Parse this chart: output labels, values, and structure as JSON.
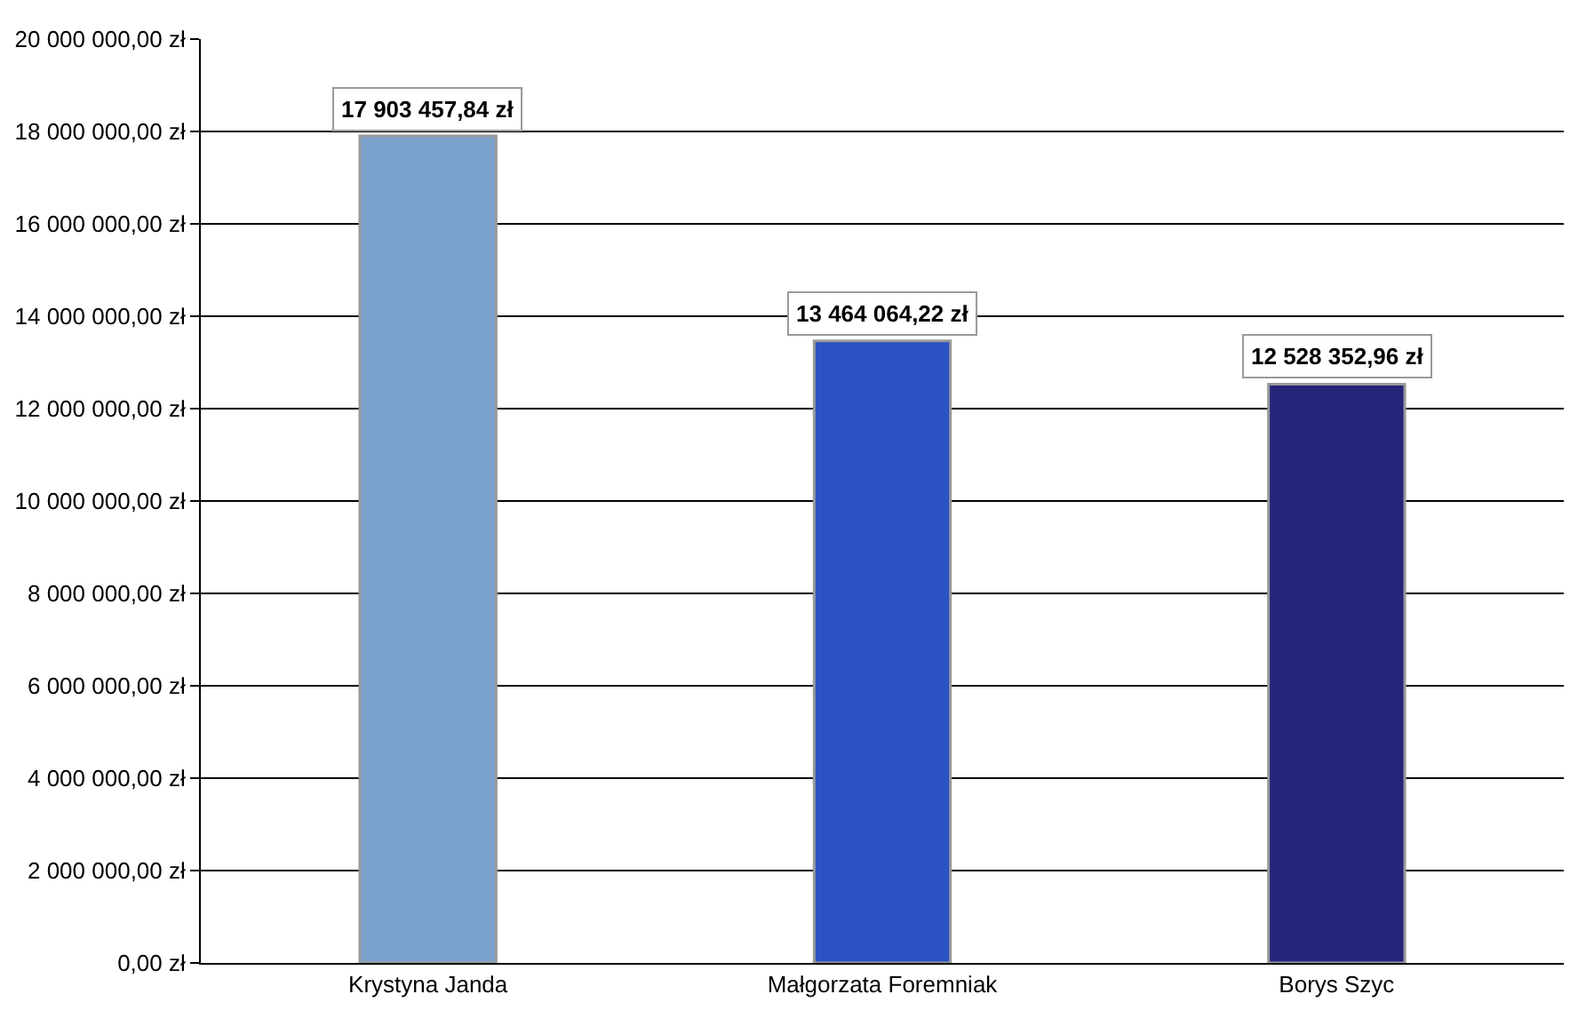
{
  "chart_data": {
    "type": "bar",
    "categories": [
      "Krystyna Janda",
      "Małgorzata Foremniak",
      "Borys Szyc"
    ],
    "values": [
      17903457.84,
      13464064.22,
      12528352.96
    ],
    "colors": [
      "#7aa2cc",
      "#2b52c4",
      "#25257a"
    ],
    "value_labels": [
      "17 903 457,84 zł",
      "13 464 064,22 zł",
      "12 528 352,96 zł"
    ],
    "ylim": [
      0,
      20000000
    ],
    "yticks": [
      {
        "value": 0,
        "label": "0,00 zł"
      },
      {
        "value": 2000000,
        "label": "2 000 000,00 zł"
      },
      {
        "value": 4000000,
        "label": "4 000 000,00 zł"
      },
      {
        "value": 6000000,
        "label": "6 000 000,00 zł"
      },
      {
        "value": 8000000,
        "label": "8 000 000,00 zł"
      },
      {
        "value": 10000000,
        "label": "10 000 000,00 zł"
      },
      {
        "value": 12000000,
        "label": "12 000 000,00 zł"
      },
      {
        "value": 14000000,
        "label": "14 000 000,00 zł"
      },
      {
        "value": 16000000,
        "label": "16 000 000,00 zł"
      },
      {
        "value": 18000000,
        "label": "18 000 000,00 zł"
      },
      {
        "value": 20000000,
        "label": "20 000 000,00 zł"
      }
    ],
    "grid": "y",
    "legend": false
  }
}
